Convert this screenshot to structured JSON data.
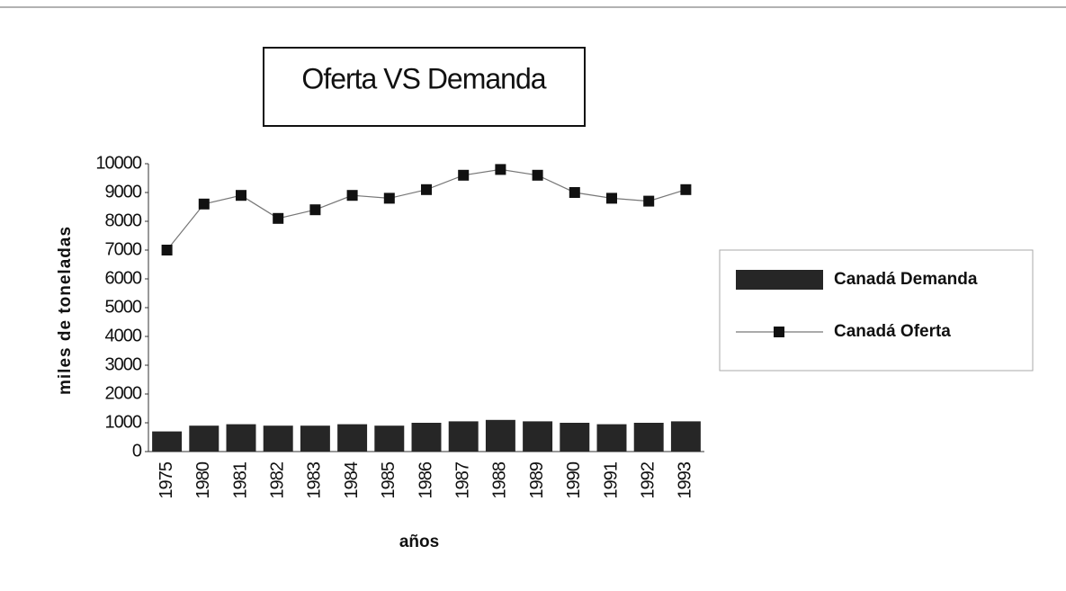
{
  "chart_data": {
    "type": "bar_line",
    "title": "Oferta VS Demanda",
    "y_label": "miles de toneladas",
    "x_label": "años",
    "categories": [
      "1975",
      "1980",
      "1981",
      "1982",
      "1983",
      "1984",
      "1985",
      "1986",
      "1987",
      "1988",
      "1989",
      "1990",
      "1991",
      "1992",
      "1993"
    ],
    "series": [
      {
        "name": "Canadá Demanda",
        "kind": "bar",
        "color": "#262626",
        "values": [
          700,
          900,
          950,
          900,
          900,
          950,
          900,
          1000,
          1050,
          1100,
          1050,
          1000,
          950,
          1000,
          1050
        ]
      },
      {
        "name": "Canadá Oferta",
        "kind": "line",
        "color": "#111111",
        "values": [
          7000,
          8600,
          8900,
          8100,
          8400,
          8900,
          8800,
          9100,
          9600,
          9800,
          9600,
          9000,
          8800,
          8700,
          9100
        ]
      }
    ],
    "ylim": [
      0,
      10000
    ],
    "yticks": [
      0,
      1000,
      2000,
      3000,
      4000,
      5000,
      6000,
      7000,
      8000,
      9000,
      10000
    ],
    "legend": "right"
  }
}
